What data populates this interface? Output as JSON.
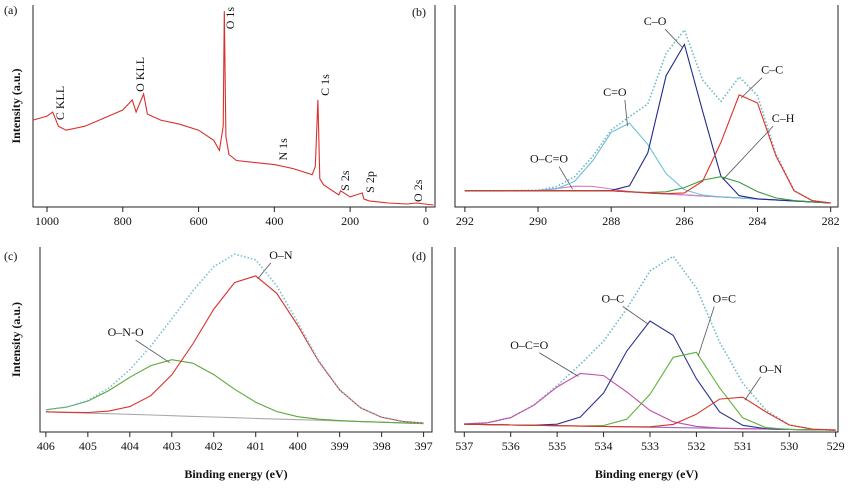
{
  "chart_data": [
    {
      "type": "line",
      "panel": "(a)",
      "ylabel": "Intensity (a.u.)",
      "x": [
        1037,
        1000,
        985,
        970,
        950,
        900,
        850,
        800,
        775,
        765,
        745,
        735,
        700,
        650,
        600,
        560,
        545,
        535,
        532,
        528,
        520,
        500,
        450,
        400,
        350,
        300,
        292,
        285,
        280,
        270,
        230,
        225,
        200,
        168,
        164,
        150,
        100,
        50,
        25,
        -20
      ],
      "xlim": [
        1037,
        -24
      ],
      "xticks": [
        1000,
        800,
        600,
        400,
        200,
        0
      ],
      "ylim": [
        0,
        100
      ],
      "series": [
        {
          "color": "#d9302c",
          "values": [
            43,
            45,
            47,
            40,
            38,
            40,
            44,
            48,
            53,
            47,
            56,
            46,
            43,
            41,
            38,
            33,
            28,
            40,
            97,
            35,
            26,
            23,
            22,
            21,
            19,
            16,
            20,
            53,
            14,
            11,
            6,
            8,
            5,
            7,
            4,
            3,
            2,
            1.5,
            2,
            1
          ]
        }
      ],
      "annotations": [
        {
          "text": "C KLL",
          "x": 966,
          "y": 43
        },
        {
          "text": "O KLL",
          "x": 755,
          "y": 57
        },
        {
          "text": "O 1s",
          "x": 517,
          "y": 88
        },
        {
          "text": "C 1s",
          "x": 266,
          "y": 55
        },
        {
          "text": "N 1s",
          "x": 377,
          "y": 23
        },
        {
          "text": "S 2s",
          "x": 214,
          "y": 8
        },
        {
          "text": "S 2p",
          "x": 148,
          "y": 7
        },
        {
          "text": "O 2s",
          "x": 21,
          "y": 2.5
        }
      ]
    },
    {
      "type": "line",
      "panel": "(b)",
      "x": [
        292,
        291,
        290,
        289.5,
        289,
        288.5,
        288,
        287.5,
        287,
        286.5,
        286,
        285.5,
        285,
        284.5,
        284,
        283.5,
        283,
        282.5,
        282
      ],
      "xlim": [
        292.27,
        281.8
      ],
      "xticks": [
        292,
        290,
        288,
        286,
        284,
        282
      ],
      "ylim": [
        0,
        100
      ],
      "series": [
        {
          "color": "#6fb9c6",
          "dotted": true,
          "values": [
            8,
            8,
            8.3,
            10,
            15,
            25.2,
            38.1,
            44.7,
            51,
            76.1,
            87.6,
            62.8,
            52.3,
            64.4,
            55.1,
            26.5,
            8.2,
            3.1,
            2
          ]
        },
        {
          "color": "#8a6bbf",
          "values": [
            8,
            8,
            8,
            8,
            8,
            8,
            8,
            7.5,
            7,
            6.5,
            6,
            5.5,
            5,
            4.5,
            4,
            3.5,
            3,
            2.5,
            2
          ]
        },
        {
          "name": "O–C=O",
          "color": "#d77fc0",
          "label_at": [
            289.7,
            22
          ],
          "values": [
            8,
            8,
            8.2,
            9.1,
            10.3,
            10.2,
            8.9,
            7.6,
            7,
            6.5,
            6,
            5.5,
            5,
            4.5,
            4,
            3.5,
            3,
            2.5,
            2
          ]
        },
        {
          "name": "C=O",
          "color": "#6cc0dc",
          "label_at": [
            287.9,
            55
          ],
          "values": [
            8,
            8,
            8.1,
            8.9,
            12.7,
            23,
            37,
            41.5,
            31,
            16.5,
            8.5,
            5.9,
            5,
            4.5,
            4,
            3.5,
            3,
            2.5,
            2
          ]
        },
        {
          "name": "C–O",
          "color": "#1f2a8a",
          "label_at": [
            286.8,
            90
          ],
          "values": [
            8,
            8,
            8,
            8,
            8,
            8,
            8.2,
            10.5,
            26.8,
            65,
            80.5,
            47.3,
            15.3,
            5.6,
            4,
            3.5,
            3,
            2.5,
            2
          ]
        },
        {
          "name": "C–H",
          "color": "#3c9a3c",
          "label_at": [
            283.3,
            42
          ],
          "values": [
            8,
            8,
            8,
            8,
            8,
            8,
            8,
            7.5,
            7.2,
            7.5,
            9.6,
            13.3,
            15,
            12.3,
            7.6,
            4.5,
            3.2,
            2.5,
            2
          ]
        },
        {
          "name": "C–C",
          "color": "#e0302a",
          "label_at": [
            283.6,
            66
          ],
          "values": [
            8,
            8,
            8,
            8,
            8,
            8,
            8,
            7.5,
            7,
            6.6,
            7,
            12.8,
            32,
            55.5,
            51.5,
            25.5,
            8,
            3.1,
            2
          ]
        }
      ]
    },
    {
      "type": "line",
      "panel": "(c)",
      "ylabel": "Intensity (a.u.)",
      "xlabel": "Binding energy (eV)",
      "x": [
        406,
        405.5,
        405,
        404.5,
        404,
        403.5,
        403,
        402.5,
        402,
        401.5,
        401,
        400.5,
        400,
        399.5,
        399,
        398.5,
        398,
        397.5,
        397
      ],
      "xlim": [
        406.14,
        396.8
      ],
      "xticks": [
        406,
        405,
        404,
        403,
        402,
        401,
        400,
        399,
        398,
        397
      ],
      "ylim": [
        0,
        110
      ],
      "series": [
        {
          "color": "#aaaaaa",
          "values": [
            12,
            11.6,
            11.2,
            10.9,
            10.5,
            10.1,
            9.7,
            9.3,
            8.9,
            8.5,
            8.1,
            7.7,
            7.3,
            7,
            6.6,
            6.2,
            5.8,
            5.4,
            5
          ]
        },
        {
          "name": "O–N-O",
          "color": "#5aa83a",
          "label_at": [
            404.1,
            57
          ],
          "values": [
            13.2,
            14.8,
            18.4,
            24.6,
            32.5,
            39.5,
            43,
            40.9,
            34.1,
            25.4,
            17.7,
            12.2,
            9.1,
            7.6,
            6.8,
            6.2,
            5.8,
            5.4,
            5
          ]
        },
        {
          "name": "O–N",
          "color": "#d8322a",
          "label_at": [
            400.4,
            103
          ],
          "values": [
            12,
            11.7,
            11.6,
            12.4,
            15.1,
            21.6,
            34,
            52.3,
            73.1,
            88.9,
            92.8,
            82.5,
            63.4,
            41.9,
            25,
            14.3,
            8.8,
            6.3,
            5.3
          ]
        },
        {
          "color": "#7bbfd0",
          "dotted": true,
          "values": [
            13.2,
            14.9,
            18.8,
            26.1,
            37.1,
            51,
            67.3,
            83.9,
            98.3,
            105.8,
            102.4,
            87,
            65.2,
            42.5,
            25.2,
            14.3,
            8.8,
            6.3,
            5.3
          ]
        }
      ]
    },
    {
      "type": "line",
      "panel": "(d)",
      "xlabel": "Binding energy (eV)",
      "x": [
        537,
        536.5,
        536,
        535.5,
        535,
        534.5,
        534,
        533.5,
        533,
        532.5,
        532,
        531.5,
        531,
        530.5,
        530,
        529.5,
        529
      ],
      "xlim": [
        537.2,
        528.95
      ],
      "xticks": [
        537,
        536,
        535,
        534,
        533,
        532,
        531,
        530,
        529
      ],
      "ylim": [
        0,
        100
      ],
      "series": [
        {
          "color": "#6fb9c6",
          "dotted": true,
          "values": [
            4.4,
            5,
            7.8,
            14.6,
            25.1,
            36.6,
            49.1,
            66.7,
            87.1,
            95,
            77.9,
            48.6,
            26.4,
            11.8,
            3.8,
            1.5,
            1
          ]
        },
        {
          "color": "#9a6cc0",
          "values": [
            4.2,
            4,
            3.8,
            3.6,
            3.4,
            3.2,
            3,
            2.8,
            2.6,
            2.4,
            2.2,
            2,
            1.8,
            1.6,
            1.4,
            1.2,
            1
          ]
        },
        {
          "name": "O–C=O",
          "color": "#c34fa8",
          "label_at": [
            535.6,
            45
          ],
          "values": [
            4.4,
            5,
            7.8,
            14.5,
            24.3,
            31.7,
            30.5,
            21.6,
            11.7,
            5.5,
            3,
            2.1,
            1.8,
            1.6,
            1.4,
            1.2,
            1
          ]
        },
        {
          "name": "O–C",
          "color": "#2a3590",
          "label_at": [
            533.8,
            70
          ],
          "values": [
            4.2,
            4,
            3.8,
            3.7,
            4.2,
            8.1,
            21.1,
            43.8,
            60,
            52.2,
            28.8,
            10.8,
            3.6,
            1.8,
            1.4,
            1.2,
            1
          ]
        },
        {
          "name": "O=C",
          "color": "#5fb33a",
          "label_at": [
            531.4,
            70
          ],
          "values": [
            4.2,
            4,
            3.8,
            3.6,
            3.4,
            3.2,
            3.5,
            6.9,
            20.4,
            40.4,
            43.1,
            23.9,
            7.6,
            2.4,
            1.4,
            1.2,
            1
          ]
        },
        {
          "name": "O–N",
          "color": "#d8322a",
          "label_at": [
            530.4,
            32
          ],
          "values": [
            4.2,
            4,
            3.8,
            3.6,
            3.4,
            3.2,
            3,
            2.8,
            2.8,
            4.1,
            9.6,
            17.8,
            18.8,
            10.8,
            3.8,
            1.5,
            1
          ]
        }
      ]
    }
  ]
}
